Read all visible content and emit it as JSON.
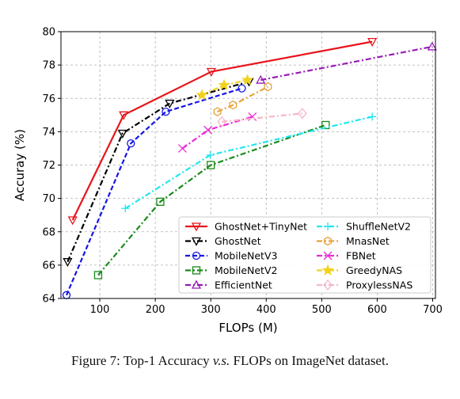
{
  "caption": {
    "prefix": "Figure 7: Top-1 Accuracy ",
    "vs": "v.s.",
    "suffix": " FLOPs on ImageNet dataset."
  },
  "chart_data": {
    "type": "line",
    "xlabel": "FLOPs (M)",
    "ylabel": "Accuray (%)",
    "xlim": [
      30,
      705
    ],
    "ylim": [
      64,
      80
    ],
    "xticks": [
      100,
      200,
      300,
      400,
      500,
      600,
      700
    ],
    "yticks": [
      64,
      66,
      68,
      70,
      72,
      74,
      76,
      78,
      80
    ],
    "grid": true,
    "legend_position": "lower-right",
    "series": [
      {
        "name": "GhostNet+TinyNet",
        "color": "#e8141a",
        "dash": "solid",
        "marker": "triangle-down",
        "points": [
          [
            51,
            68.7
          ],
          [
            143,
            75.0
          ],
          [
            301,
            77.6
          ],
          [
            591,
            79.4
          ]
        ]
      },
      {
        "name": "GhostNet",
        "color": "#000000",
        "dash": "dashdot",
        "marker": "triangle-down",
        "points": [
          [
            42,
            66.2
          ],
          [
            141,
            73.9
          ],
          [
            226,
            75.7
          ],
          [
            369,
            77.0
          ]
        ]
      },
      {
        "name": "MobileNetV3",
        "color": "#1515e6",
        "dash": "dashed",
        "marker": "circle",
        "points": [
          [
            40,
            64.2
          ],
          [
            156,
            73.3
          ],
          [
            219,
            75.2
          ],
          [
            356,
            76.6
          ]
        ]
      },
      {
        "name": "MobileNetV2",
        "color": "#1a8a1a",
        "dash": "dashdot",
        "marker": "square",
        "points": [
          [
            97,
            65.4
          ],
          [
            209,
            69.8
          ],
          [
            300,
            72.0
          ],
          [
            507,
            74.4
          ]
        ]
      },
      {
        "name": "EfficientNet",
        "color": "#9a1ab8",
        "dash": "dashdot",
        "marker": "triangle-up",
        "points": [
          [
            390,
            77.1
          ],
          [
            699,
            79.1
          ]
        ]
      },
      {
        "name": "ShuffleNetV2",
        "color": "#22e6f0",
        "dash": "dashdot",
        "marker": "plus",
        "points": [
          [
            146,
            69.4
          ],
          [
            299,
            72.6
          ],
          [
            591,
            74.9
          ]
        ]
      },
      {
        "name": "MnasNet",
        "color": "#e8a23a",
        "dash": "dashdot",
        "marker": "hexagon",
        "points": [
          [
            312,
            75.2
          ],
          [
            340,
            75.6
          ],
          [
            403,
            76.7
          ]
        ]
      },
      {
        "name": "FBNet",
        "color": "#ea2ad6",
        "dash": "dashdot",
        "marker": "x",
        "points": [
          [
            249,
            73.0
          ],
          [
            295,
            74.1
          ],
          [
            375,
            74.9
          ]
        ]
      },
      {
        "name": "GreedyNAS",
        "color": "#f2d21a",
        "dash": "dashdot",
        "marker": "star",
        "points": [
          [
            284,
            76.2
          ],
          [
            324,
            76.8
          ],
          [
            366,
            77.1
          ]
        ]
      },
      {
        "name": "ProxylessNAS",
        "color": "#f7b6c8",
        "dash": "dashdot",
        "marker": "diamond",
        "points": [
          [
            320,
            74.6
          ],
          [
            465,
            75.1
          ]
        ]
      }
    ]
  }
}
